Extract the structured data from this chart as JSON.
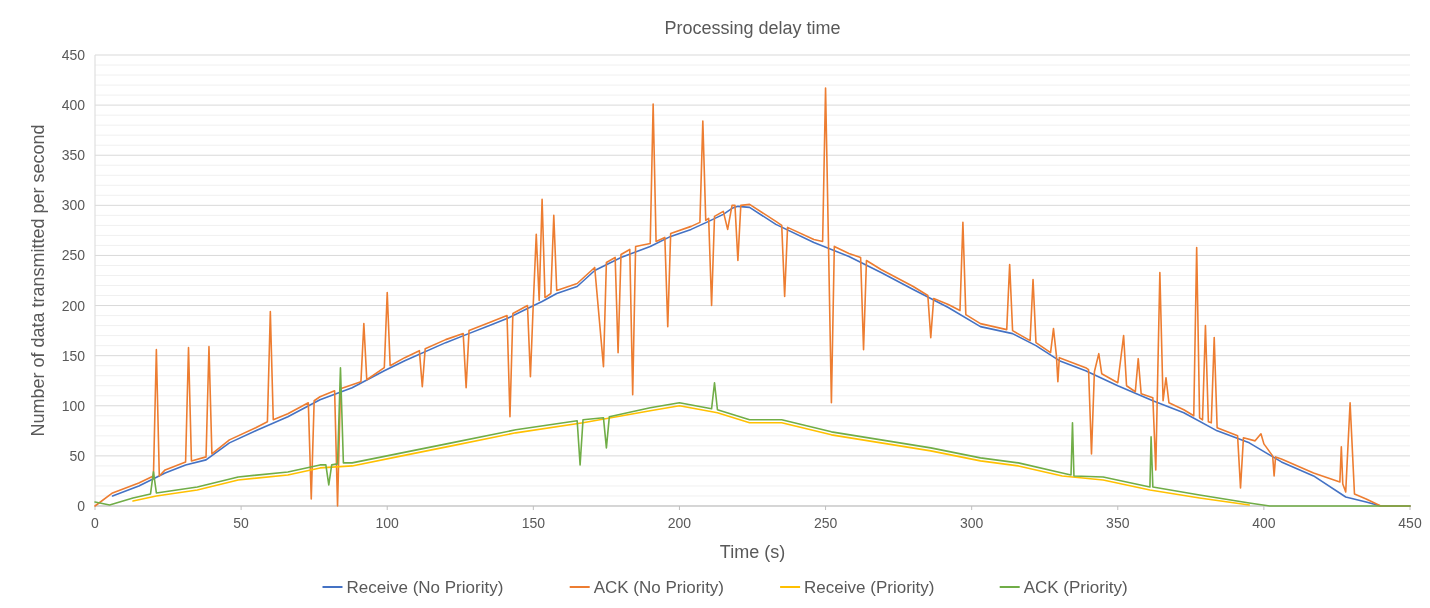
{
  "chart_data": {
    "type": "line",
    "title": "Processing delay time",
    "xlabel": "Time (s)",
    "ylabel": "Number of data transmitted per second",
    "xlim": [
      0,
      450
    ],
    "xticks": [
      0,
      50,
      100,
      150,
      200,
      250,
      300,
      350,
      400,
      450
    ],
    "ylim": [
      0,
      450
    ],
    "yticks": [
      0,
      {
        "value": 10,
        "label": null
      },
      {
        "value": 20,
        "label": null
      },
      {
        "value": 30,
        "label": null
      },
      {
        "value": 40,
        "label": null
      },
      50,
      {
        "value": 60,
        "label": null
      },
      {
        "value": 70,
        "label": null
      },
      {
        "value": 80,
        "label": null
      },
      {
        "value": 90,
        "label": null
      },
      100,
      {
        "value": 110,
        "label": null
      },
      {
        "value": 120,
        "label": null
      },
      {
        "value": 130,
        "label": null
      },
      {
        "value": 140,
        "label": null
      },
      150,
      {
        "value": 160,
        "label": null
      },
      {
        "value": 170,
        "label": null
      },
      {
        "value": 180,
        "label": null
      },
      {
        "value": 190,
        "label": null
      },
      200,
      {
        "value": 210,
        "label": null
      },
      {
        "value": 220,
        "label": null
      },
      {
        "value": 230,
        "label": null
      },
      {
        "value": 240,
        "label": null
      },
      250,
      {
        "value": 260,
        "label": null
      },
      {
        "value": 270,
        "label": null
      },
      {
        "value": 280,
        "label": null
      },
      {
        "value": 290,
        "label": null
      },
      300,
      {
        "value": 310,
        "label": null
      },
      {
        "value": 320,
        "label": null
      },
      {
        "value": 330,
        "label": null
      },
      {
        "value": 340,
        "label": null
      },
      350,
      {
        "value": 360,
        "label": null
      },
      {
        "value": 370,
        "label": null
      },
      {
        "value": 380,
        "label": null
      },
      {
        "value": 390,
        "label": null
      },
      400,
      {
        "value": 410,
        "label": null
      },
      {
        "value": 420,
        "label": null
      },
      {
        "value": 430,
        "label": null
      },
      {
        "value": 440,
        "label": null
      },
      450
    ],
    "grid": "y",
    "legend": "bottom",
    "marker": "none",
    "line_style": "solid",
    "series": [
      {
        "name": "Receive (No Priority)",
        "color": "#4472c4",
        "x": [
          6,
          15,
          24,
          31,
          38,
          46,
          55,
          66,
          77,
          88,
          99,
          106,
          120,
          127,
          135,
          141,
          148,
          153,
          158,
          165,
          171,
          180,
          190,
          197,
          204,
          210,
          215,
          218,
          220,
          224,
          233,
          246,
          258,
          269,
          280,
          292,
          303,
          314,
          322,
          330,
          339,
          350,
          362,
          372.6,
          384,
          395,
          406,
          417,
          428,
          435,
          440,
          450
        ],
        "values": [
          10,
          20,
          33,
          41,
          46,
          63,
          75,
          89,
          106,
          118,
          135,
          145,
          163,
          171,
          180,
          187,
          197,
          204,
          212,
          219,
          235,
          248,
          259,
          269,
          276,
          284,
          291,
          297,
          299,
          298,
          281,
          263,
          249,
          233,
          216,
          198,
          179,
          172,
          160,
          145,
          135,
          120,
          105,
          93,
          75,
          63,
          44,
          30,
          9,
          4,
          0,
          0
        ]
      },
      {
        "name": "ACK (No Priority)",
        "color": "#ed7d31",
        "x": [
          0,
          6,
          15,
          20,
          21,
          22,
          24,
          31,
          32,
          33,
          38,
          39,
          40,
          46,
          55,
          59,
          60,
          61,
          66,
          73,
          74,
          75,
          77,
          82,
          83,
          84,
          88,
          91,
          92,
          93,
          99,
          100,
          101,
          106,
          111,
          112,
          113,
          120,
          126,
          127,
          128,
          135,
          141,
          142,
          143,
          148,
          149,
          150,
          151,
          152,
          153,
          154,
          156,
          157,
          158,
          165,
          171,
          174,
          175,
          178,
          179,
          180,
          183,
          184,
          185,
          190,
          191,
          192,
          195,
          196,
          197,
          204,
          207,
          208,
          209,
          210,
          211,
          212,
          215,
          216.5,
          218,
          219,
          220,
          221,
          224,
          233,
          235,
          236,
          237,
          246,
          249,
          250,
          251,
          252,
          253,
          258,
          262,
          263,
          264,
          269,
          280,
          285,
          286,
          287,
          292,
          296,
          297,
          298,
          303,
          312,
          313,
          314,
          320,
          321,
          322,
          327,
          328,
          329,
          329.5,
          330,
          339,
          340,
          341,
          342,
          343.5,
          344.5,
          350,
          352,
          353,
          356,
          357,
          358,
          362,
          363,
          364.4,
          365.5,
          366.5,
          367.5,
          372.6,
          376,
          377,
          378,
          379,
          380,
          381,
          382,
          383,
          384,
          391,
          392,
          393,
          397,
          399,
          400,
          403,
          403.5,
          404,
          406,
          417,
          426,
          426.5,
          427,
          428,
          429.5,
          431,
          435,
          440,
          450
        ],
        "values": [
          0,
          13,
          23,
          30,
          156,
          30,
          36,
          44,
          158,
          45,
          49,
          159,
          52,
          66,
          78,
          84,
          194,
          86,
          92,
          103,
          7,
          105,
          109,
          115,
          0,
          117,
          121,
          124,
          182,
          126,
          138,
          213,
          140,
          148,
          155,
          119,
          157,
          166,
          172,
          118,
          175,
          183,
          190,
          89,
          192,
          200,
          129,
          203,
          271,
          205,
          306,
          208,
          212,
          290,
          215,
          222,
          238,
          139,
          243,
          248,
          153,
          251,
          256,
          111,
          259,
          262,
          401,
          264,
          268,
          179,
          272,
          279,
          283,
          384,
          285,
          287,
          200,
          289,
          294,
          276,
          300,
          300,
          245,
          300,
          301,
          284,
          280,
          209,
          278,
          266,
          264,
          417,
          262,
          103,
          259,
          252,
          248,
          156,
          245,
          236,
          219,
          210,
          168,
          207,
          201,
          195,
          283,
          191,
          182,
          176,
          241,
          175,
          165,
          226,
          163,
          153,
          177,
          150,
          124,
          148,
          138,
          136,
          52,
          134,
          152,
          132,
          123,
          170,
          120,
          114,
          147,
          112,
          108,
          36,
          233,
          105,
          128,
          103,
          96,
          90,
          258,
          88,
          86,
          180,
          84,
          83,
          168,
          78,
          70,
          18,
          68,
          65,
          72,
          62,
          50,
          30,
          49,
          47,
          33,
          24,
          59,
          22,
          14,
          103,
          12,
          7,
          0,
          0
        ]
      },
      {
        "name": "Receive (Priority)",
        "color": "#ffc000",
        "x": [
          13,
          21,
          35,
          49,
          66,
          77,
          88,
          105,
          122,
          144,
          167,
          190,
          200,
          213,
          224,
          235,
          252,
          269,
          286,
          303,
          316,
          331,
          345,
          361,
          378,
          395
        ],
        "values": [
          5,
          10,
          16,
          26,
          31,
          38,
          40,
          50,
          60,
          73,
          83,
          95,
          100,
          93,
          83,
          83,
          71,
          63,
          55,
          45,
          40,
          30,
          26,
          16,
          8,
          1
        ]
      },
      {
        "name": "ACK (Priority)",
        "color": "#70ad47",
        "x": [
          0,
          5,
          13,
          19,
          20,
          21,
          35,
          49,
          66,
          77,
          79,
          80,
          81,
          83,
          84,
          85,
          88,
          105,
          122,
          144,
          165,
          166,
          167,
          174,
          175,
          176,
          190,
          200,
          211,
          212,
          213,
          224,
          235,
          252,
          269,
          286,
          303,
          316,
          331,
          334,
          334.5,
          335,
          345,
          361,
          361.4,
          362,
          378,
          395,
          402,
          450
        ],
        "values": [
          4,
          1,
          8,
          12,
          34,
          13,
          19,
          29,
          34,
          41,
          41,
          21,
          41,
          42,
          138,
          43,
          43,
          53,
          63,
          76,
          85,
          41,
          86,
          88,
          58,
          89,
          98,
          103,
          97,
          123,
          96,
          86,
          86,
          74,
          66,
          58,
          48,
          43,
          33,
          31,
          83,
          30,
          29,
          19,
          69,
          19,
          11,
          3,
          0,
          0
        ]
      }
    ]
  }
}
